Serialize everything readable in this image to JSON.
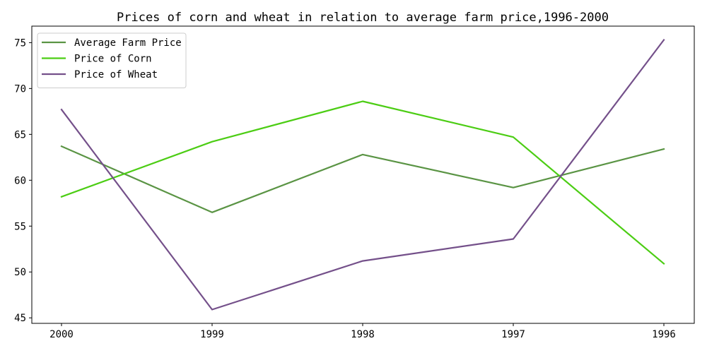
{
  "chart_data": {
    "type": "line",
    "title": "Prices of corn and wheat in relation to average farm price,1996-2000",
    "categories": [
      "2000",
      "1999",
      "1998",
      "1997",
      "1996"
    ],
    "series": [
      {
        "name": "Average Farm Price",
        "values": [
          63.7,
          56.5,
          62.8,
          59.2,
          63.4
        ],
        "color": "#5a9444"
      },
      {
        "name": "Price of Corn",
        "values": [
          58.2,
          64.2,
          68.6,
          64.7,
          50.9
        ],
        "color": "#4ccd14"
      },
      {
        "name": "Price of Wheat",
        "values": [
          67.7,
          45.9,
          51.2,
          53.6,
          75.3
        ],
        "color": "#74508a"
      }
    ],
    "ylim": [
      44.4,
      76.8
    ],
    "yticks": [
      45,
      50,
      55,
      60,
      65,
      70,
      75
    ],
    "grid": false,
    "legend_position": "top-left"
  }
}
